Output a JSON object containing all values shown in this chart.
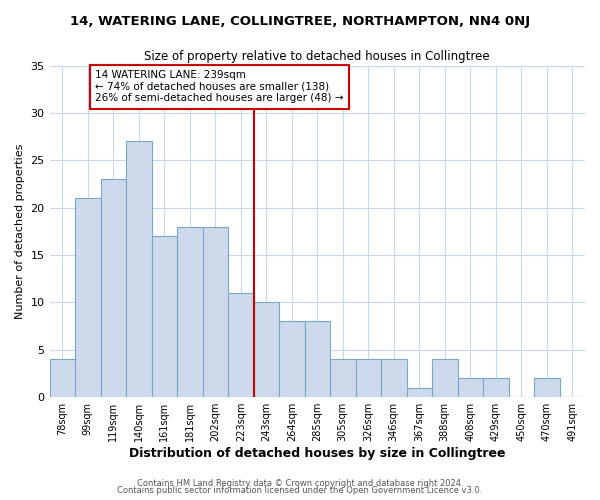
{
  "title": "14, WATERING LANE, COLLINGTREE, NORTHAMPTON, NN4 0NJ",
  "subtitle": "Size of property relative to detached houses in Collingtree",
  "xlabel": "Distribution of detached houses by size in Collingtree",
  "ylabel": "Number of detached properties",
  "bar_color": "#ccdaeb",
  "bar_edge_color": "#7aa8cc",
  "categories": [
    "78sqm",
    "99sqm",
    "119sqm",
    "140sqm",
    "161sqm",
    "181sqm",
    "202sqm",
    "223sqm",
    "243sqm",
    "264sqm",
    "285sqm",
    "305sqm",
    "326sqm",
    "346sqm",
    "367sqm",
    "388sqm",
    "408sqm",
    "429sqm",
    "450sqm",
    "470sqm",
    "491sqm"
  ],
  "values": [
    4,
    21,
    23,
    27,
    17,
    18,
    18,
    11,
    10,
    8,
    8,
    4,
    4,
    4,
    1,
    4,
    2,
    2,
    0,
    2,
    0
  ],
  "vline_x_index": 8,
  "vline_color": "#cc0000",
  "annotation_title": "14 WATERING LANE: 239sqm",
  "annotation_line1": "← 74% of detached houses are smaller (138)",
  "annotation_line2": "26% of semi-detached houses are larger (48) →",
  "annotation_box_color": "#ffffff",
  "annotation_box_edge": "#cc0000",
  "ylim": [
    0,
    35
  ],
  "yticks": [
    0,
    5,
    10,
    15,
    20,
    25,
    30,
    35
  ],
  "footer1": "Contains HM Land Registry data © Crown copyright and database right 2024.",
  "footer2": "Contains public sector information licensed under the Open Government Licence v3.0.",
  "bg_color": "#ffffff",
  "plot_bg_color": "#ffffff"
}
